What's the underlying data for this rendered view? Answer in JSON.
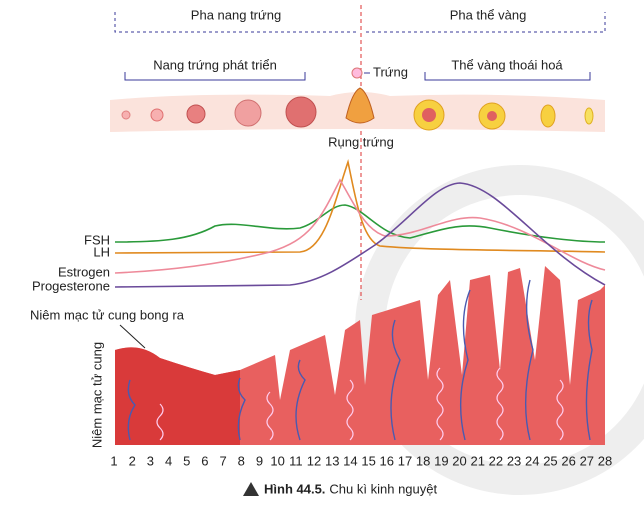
{
  "phases": {
    "follicular": "Pha nang trứng",
    "luteal": "Pha thể vàng"
  },
  "ovary": {
    "developing": "Nang trứng phát triển",
    "egg": "Trứng",
    "regressing": "Thể vàng thoái hoá",
    "ovulation": "Rụng trứng"
  },
  "hormones": {
    "fsh": "FSH",
    "lh": "LH",
    "estrogen": "Estrogen",
    "progesterone": "Progesterone"
  },
  "endometrium": {
    "shedding": "Niêm mạc tử cung bong ra",
    "label": "Niêm mạc tử cung"
  },
  "days": [
    1,
    2,
    3,
    4,
    5,
    6,
    7,
    8,
    9,
    10,
    11,
    12,
    13,
    14,
    15,
    16,
    17,
    18,
    19,
    20,
    21,
    22,
    23,
    24,
    25,
    26,
    27,
    28
  ],
  "caption": {
    "number": "Hình 44.5.",
    "text": "Chu kì kinh nguyệt"
  }
}
